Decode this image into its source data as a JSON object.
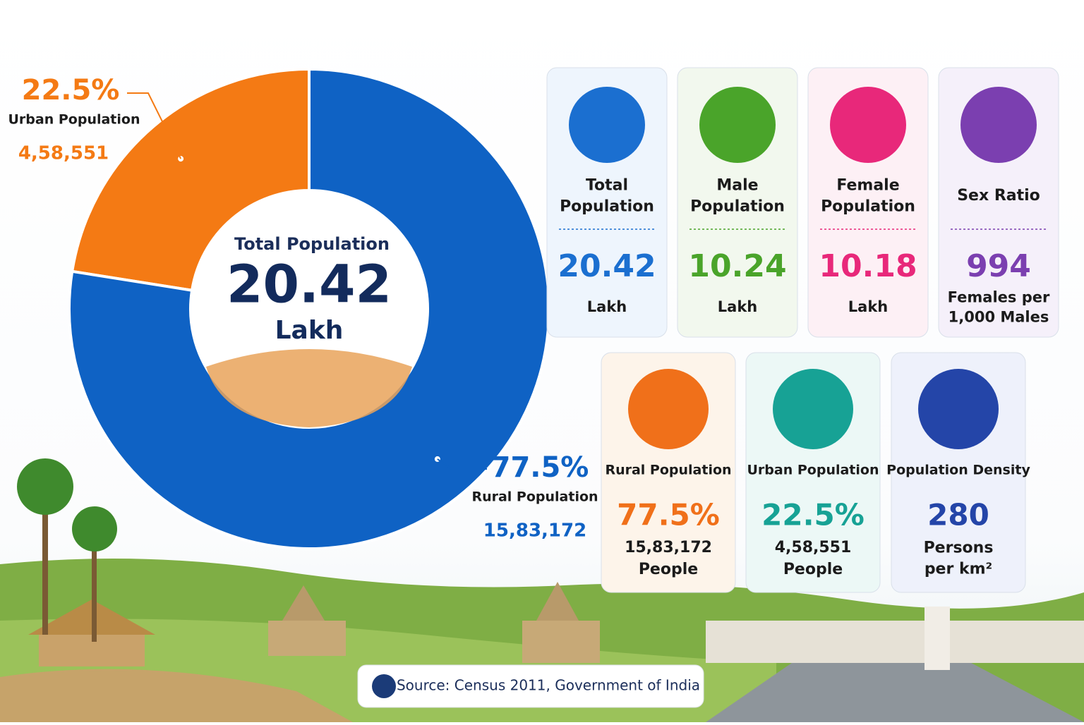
{
  "chart_data": {
    "type": "donut",
    "center_title": "Total Population",
    "center_value": "20.42",
    "center_unit": "Lakh",
    "categories": [
      "Urban Population",
      "Rural Population"
    ],
    "values": [
      22.5,
      77.5
    ],
    "value_labels": [
      "22.5%",
      "77.5%"
    ],
    "counts": [
      "4,58,551",
      "15,83,172"
    ],
    "colors": [
      "#f47a14",
      "#0f62c4"
    ]
  },
  "cards": [
    {
      "title": "Total Population",
      "value": "20.42",
      "unit": "Lakh",
      "color": "#1b6fd0",
      "bg": "#eef5fd"
    },
    {
      "title": "Male Population",
      "value": "10.24",
      "unit": "Lakh",
      "color": "#4aa42a",
      "bg": "#f2f8ee"
    },
    {
      "title": "Female Population",
      "value": "10.18",
      "unit": "Lakh",
      "color": "#e8287a",
      "bg": "#fdf0f5"
    },
    {
      "title": "Sex Ratio",
      "value": "994",
      "unit": "Females per 1,000 Males",
      "color": "#7b3fb0",
      "bg": "#f5f0fa"
    }
  ],
  "cards2": [
    {
      "title": "Rural Population",
      "value": "77.5%",
      "count": "15,83,172",
      "unit": "People",
      "color": "#f0701a",
      "bg": "#fdf4ea"
    },
    {
      "title": "Urban Population",
      "value": "22.5%",
      "count": "4,58,551",
      "unit": "People",
      "color": "#17a295",
      "bg": "#ecf8f6"
    },
    {
      "title": "Population Density",
      "value": "280",
      "unit": "Persons per km²",
      "color": "#2445a8",
      "bg": "#eef1fb"
    }
  ],
  "source": "Source: Census 2011, Government of India"
}
